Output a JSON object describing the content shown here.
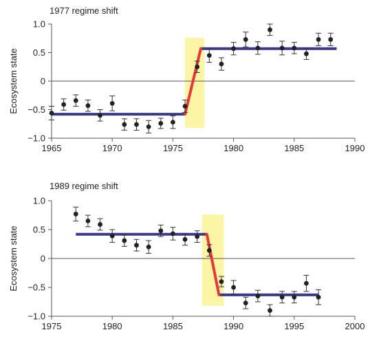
{
  "chart_data": [
    {
      "type": "scatter",
      "title": "1977 regime shift",
      "xlabel": "",
      "ylabel": "Ecosystem state",
      "xlim": [
        1965,
        1990
      ],
      "ylim": [
        -1.0,
        1.0
      ],
      "xticks": [
        1965,
        1970,
        1975,
        1980,
        1985,
        1990
      ],
      "yticks": [
        1.0,
        0.5,
        0,
        -0.5,
        -1.0
      ],
      "ytick_labels": [
        "1.0",
        "0.5",
        "0",
        "−0.5",
        "−1.0"
      ],
      "grid": false,
      "colors": {
        "points": "#222222",
        "regime_mean": "#3a3a8c",
        "shift": "#e8383b",
        "highlight": "#fbf5a6"
      },
      "highlight_span": [
        1976.0,
        1977.6
      ],
      "regime_means": [
        {
          "x": [
            1965,
            1976
          ],
          "y": [
            -0.58,
            -0.58
          ]
        },
        {
          "x": [
            1977.3,
            1988.5
          ],
          "y": [
            0.57,
            0.57
          ]
        }
      ],
      "shift_line": {
        "x": [
          1976,
          1977.3
        ],
        "y": [
          -0.58,
          0.57
        ]
      },
      "x": [
        1965,
        1966,
        1967,
        1968,
        1969,
        1970,
        1971,
        1972,
        1973,
        1974,
        1975,
        1976,
        1977,
        1978,
        1979,
        1980,
        1981,
        1982,
        1983,
        1984,
        1985,
        1986,
        1987,
        1988
      ],
      "y": [
        -0.56,
        -0.41,
        -0.34,
        -0.43,
        -0.6,
        -0.39,
        -0.76,
        -0.76,
        -0.8,
        -0.74,
        -0.72,
        -0.44,
        0.25,
        0.45,
        0.3,
        0.57,
        0.73,
        0.58,
        0.9,
        0.58,
        0.58,
        0.48,
        0.73,
        0.73
      ],
      "error": [
        0.12,
        0.1,
        0.1,
        0.1,
        0.1,
        0.13,
        0.1,
        0.1,
        0.11,
        0.09,
        0.11,
        0.11,
        0.1,
        0.12,
        0.11,
        0.11,
        0.13,
        0.11,
        0.1,
        0.12,
        0.1,
        0.1,
        0.11,
        0.11
      ]
    },
    {
      "type": "scatter",
      "title": "1989 regime shift",
      "xlabel": "",
      "ylabel": "Ecosystem state",
      "xlim": [
        1975,
        2000
      ],
      "ylim": [
        -1.0,
        1.0
      ],
      "xticks": [
        1975,
        1980,
        1985,
        1990,
        1995,
        2000
      ],
      "yticks": [
        1.0,
        0.5,
        0,
        -0.5,
        -1.0
      ],
      "ytick_labels": [
        "1.0",
        "0.5",
        "0",
        "−0.5",
        "−1.0"
      ],
      "grid": false,
      "colors": {
        "points": "#222222",
        "regime_mean": "#3a3a8c",
        "shift": "#e8383b",
        "highlight": "#fbf5a6"
      },
      "highlight_span": [
        1987.4,
        1989.2
      ],
      "regime_means": [
        {
          "x": [
            1977,
            1987.8
          ],
          "y": [
            0.42,
            0.42
          ]
        },
        {
          "x": [
            1988.8,
            1997
          ],
          "y": [
            -0.63,
            -0.63
          ]
        }
      ],
      "shift_line": {
        "x": [
          1987.8,
          1988.8
        ],
        "y": [
          0.42,
          -0.63
        ]
      },
      "x": [
        1977,
        1978,
        1979,
        1980,
        1981,
        1982,
        1983,
        1984,
        1985,
        1986,
        1987,
        1988,
        1989,
        1990,
        1991,
        1992,
        1993,
        1994,
        1995,
        1996,
        1997
      ],
      "y": [
        0.77,
        0.65,
        0.59,
        0.39,
        0.31,
        0.23,
        0.2,
        0.48,
        0.43,
        0.33,
        0.38,
        0.14,
        -0.4,
        -0.5,
        -0.77,
        -0.65,
        -0.9,
        -0.67,
        -0.67,
        -0.43,
        -0.67
      ],
      "error": [
        0.12,
        0.1,
        0.1,
        0.11,
        0.1,
        0.1,
        0.11,
        0.1,
        0.11,
        0.1,
        0.1,
        0.1,
        0.09,
        0.12,
        0.1,
        0.1,
        0.1,
        0.1,
        0.1,
        0.14,
        0.13
      ]
    }
  ]
}
